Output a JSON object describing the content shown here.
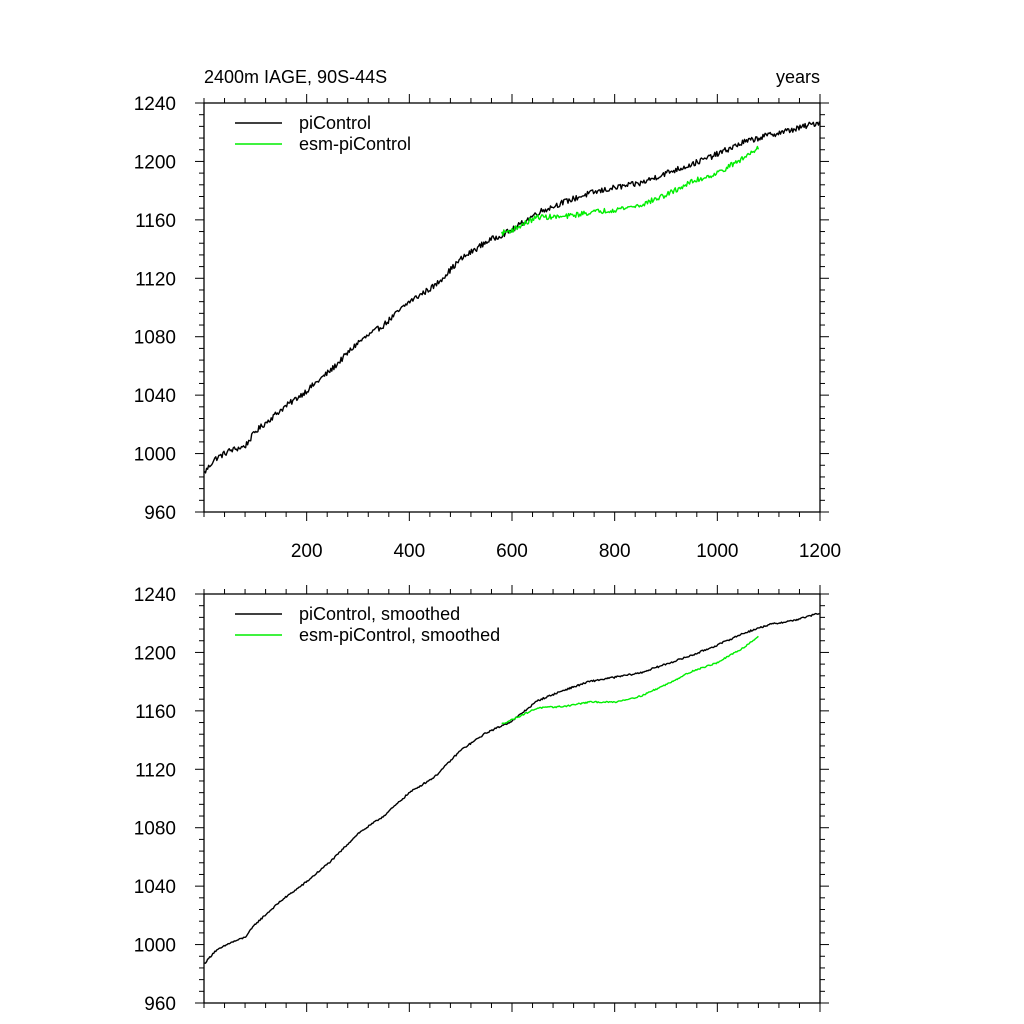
{
  "figure": {
    "title_left": "2400m IAGE, 90S-44S",
    "title_right": "years"
  },
  "chart_data": [
    {
      "type": "line",
      "panel": "top",
      "title": "2400m IAGE, 90S-44S",
      "xunits": "years",
      "xlim": [
        0,
        1200
      ],
      "ylim": [
        960,
        1240
      ],
      "xticks": [
        200,
        400,
        600,
        800,
        1000,
        1200
      ],
      "xtick_labels": [
        "200",
        "400",
        "600",
        "800",
        "1000",
        "1200"
      ],
      "yticks": [
        960,
        1000,
        1040,
        1080,
        1120,
        1160,
        1200,
        1240
      ],
      "ytick_labels": [
        "960",
        "1000",
        "1040",
        "1080",
        "1120",
        "1160",
        "1200",
        "1240"
      ],
      "legend_position": "top-left",
      "series": [
        {
          "name": "piControl",
          "color": "#000000",
          "noise": 2.0,
          "x": [
            1,
            20,
            50,
            80,
            100,
            150,
            200,
            250,
            300,
            350,
            400,
            450,
            500,
            550,
            600,
            650,
            700,
            750,
            800,
            850,
            900,
            950,
            1000,
            1050,
            1100,
            1150,
            1200
          ],
          "y": [
            987,
            996,
            1002,
            1005,
            1015,
            1030,
            1043,
            1058,
            1076,
            1088,
            1104,
            1115,
            1133,
            1145,
            1153,
            1165,
            1172,
            1178,
            1182,
            1185,
            1192,
            1198,
            1205,
            1213,
            1218,
            1222,
            1227
          ]
        },
        {
          "name": "esm-piControl",
          "color": "#00ee00",
          "noise": 1.8,
          "x": [
            580,
            600,
            650,
            700,
            750,
            800,
            850,
            900,
            950,
            1000,
            1050,
            1080
          ],
          "y": [
            1151,
            1153,
            1162,
            1162,
            1165,
            1167,
            1170,
            1177,
            1186,
            1192,
            1202,
            1210
          ]
        }
      ]
    },
    {
      "type": "line",
      "panel": "bottom",
      "xlim": [
        0,
        1200
      ],
      "ylim": [
        960,
        1240
      ],
      "xticks": [
        200,
        400,
        600,
        800,
        1000,
        1200
      ],
      "yticks": [
        960,
        1000,
        1040,
        1080,
        1120,
        1160,
        1200,
        1240
      ],
      "ytick_labels": [
        "960",
        "1000",
        "1040",
        "1080",
        "1120",
        "1160",
        "1200",
        "1240"
      ],
      "legend_position": "top-left",
      "series": [
        {
          "name": "piControl, smoothed",
          "color": "#000000",
          "noise": 0.6,
          "x": [
            1,
            20,
            50,
            80,
            100,
            150,
            200,
            250,
            300,
            350,
            400,
            450,
            500,
            550,
            600,
            650,
            700,
            750,
            800,
            850,
            900,
            950,
            1000,
            1050,
            1100,
            1150,
            1200
          ],
          "y": [
            987,
            995,
            1001,
            1005,
            1014,
            1030,
            1043,
            1058,
            1076,
            1088,
            1104,
            1115,
            1133,
            1145,
            1153,
            1167,
            1174,
            1180,
            1183,
            1186,
            1192,
            1198,
            1205,
            1213,
            1219,
            1222,
            1227
          ]
        },
        {
          "name": "esm-piControl, smoothed",
          "color": "#00ee00",
          "noise": 0.5,
          "x": [
            580,
            600,
            650,
            700,
            750,
            800,
            850,
            900,
            950,
            1000,
            1050,
            1080
          ],
          "y": [
            1151,
            1154,
            1162,
            1163,
            1166,
            1166,
            1170,
            1178,
            1187,
            1193,
            1203,
            1211
          ]
        }
      ]
    }
  ]
}
